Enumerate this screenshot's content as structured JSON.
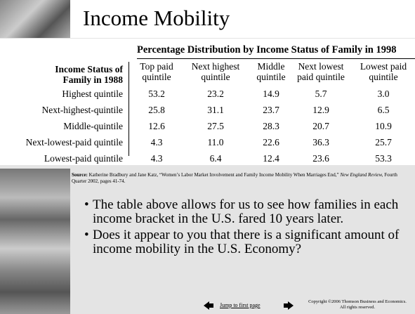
{
  "header": {
    "title": "Income Mobility"
  },
  "table": {
    "caption": "Percentage Distribution by Income Status of Family in 1998",
    "row_header": "Income Status of Family in 1988",
    "columns": [
      "Top paid quintile",
      "Next highest quintile",
      "Middle quintile",
      "Next lowest paid quintile",
      "Lowest paid quintile"
    ],
    "rows": [
      {
        "label": "Highest quintile",
        "values": [
          "53.2",
          "23.2",
          "14.9",
          "5.7",
          "3.0"
        ]
      },
      {
        "label": "Next-highest-quintile",
        "values": [
          "25.8",
          "31.1",
          "23.7",
          "12.9",
          "6.5"
        ]
      },
      {
        "label": "Middle-quintile",
        "values": [
          "12.6",
          "27.5",
          "28.3",
          "20.7",
          "10.9"
        ]
      },
      {
        "label": "Next-lowest-paid quintile",
        "values": [
          "4.3",
          "11.0",
          "22.6",
          "36.3",
          "25.7"
        ]
      },
      {
        "label": "Lowest-paid quintile",
        "values": [
          "4.3",
          "6.4",
          "12.4",
          "23.6",
          "53.3"
        ]
      }
    ]
  },
  "source": {
    "label": "Source:",
    "text_1": "Katherine Bradbury and Jane Katz, “Women’s Labor Market Involvement and Family Income Mobility When Marriages End,”",
    "journal": "New England Review,",
    "text_2": "Fourth Quarter 2002, pages 41-74."
  },
  "bullets": [
    "The table above allows for us to see how families in each income bracket in the U.S. fared 10 years later.",
    "Does it appear to you that there is a significant amount of income mobility in the U.S. Economy?"
  ],
  "footer": {
    "link": "Jump to first page",
    "copyright": "Copyright ©2006 Thomson Business and Economics. All rights reserved."
  }
}
